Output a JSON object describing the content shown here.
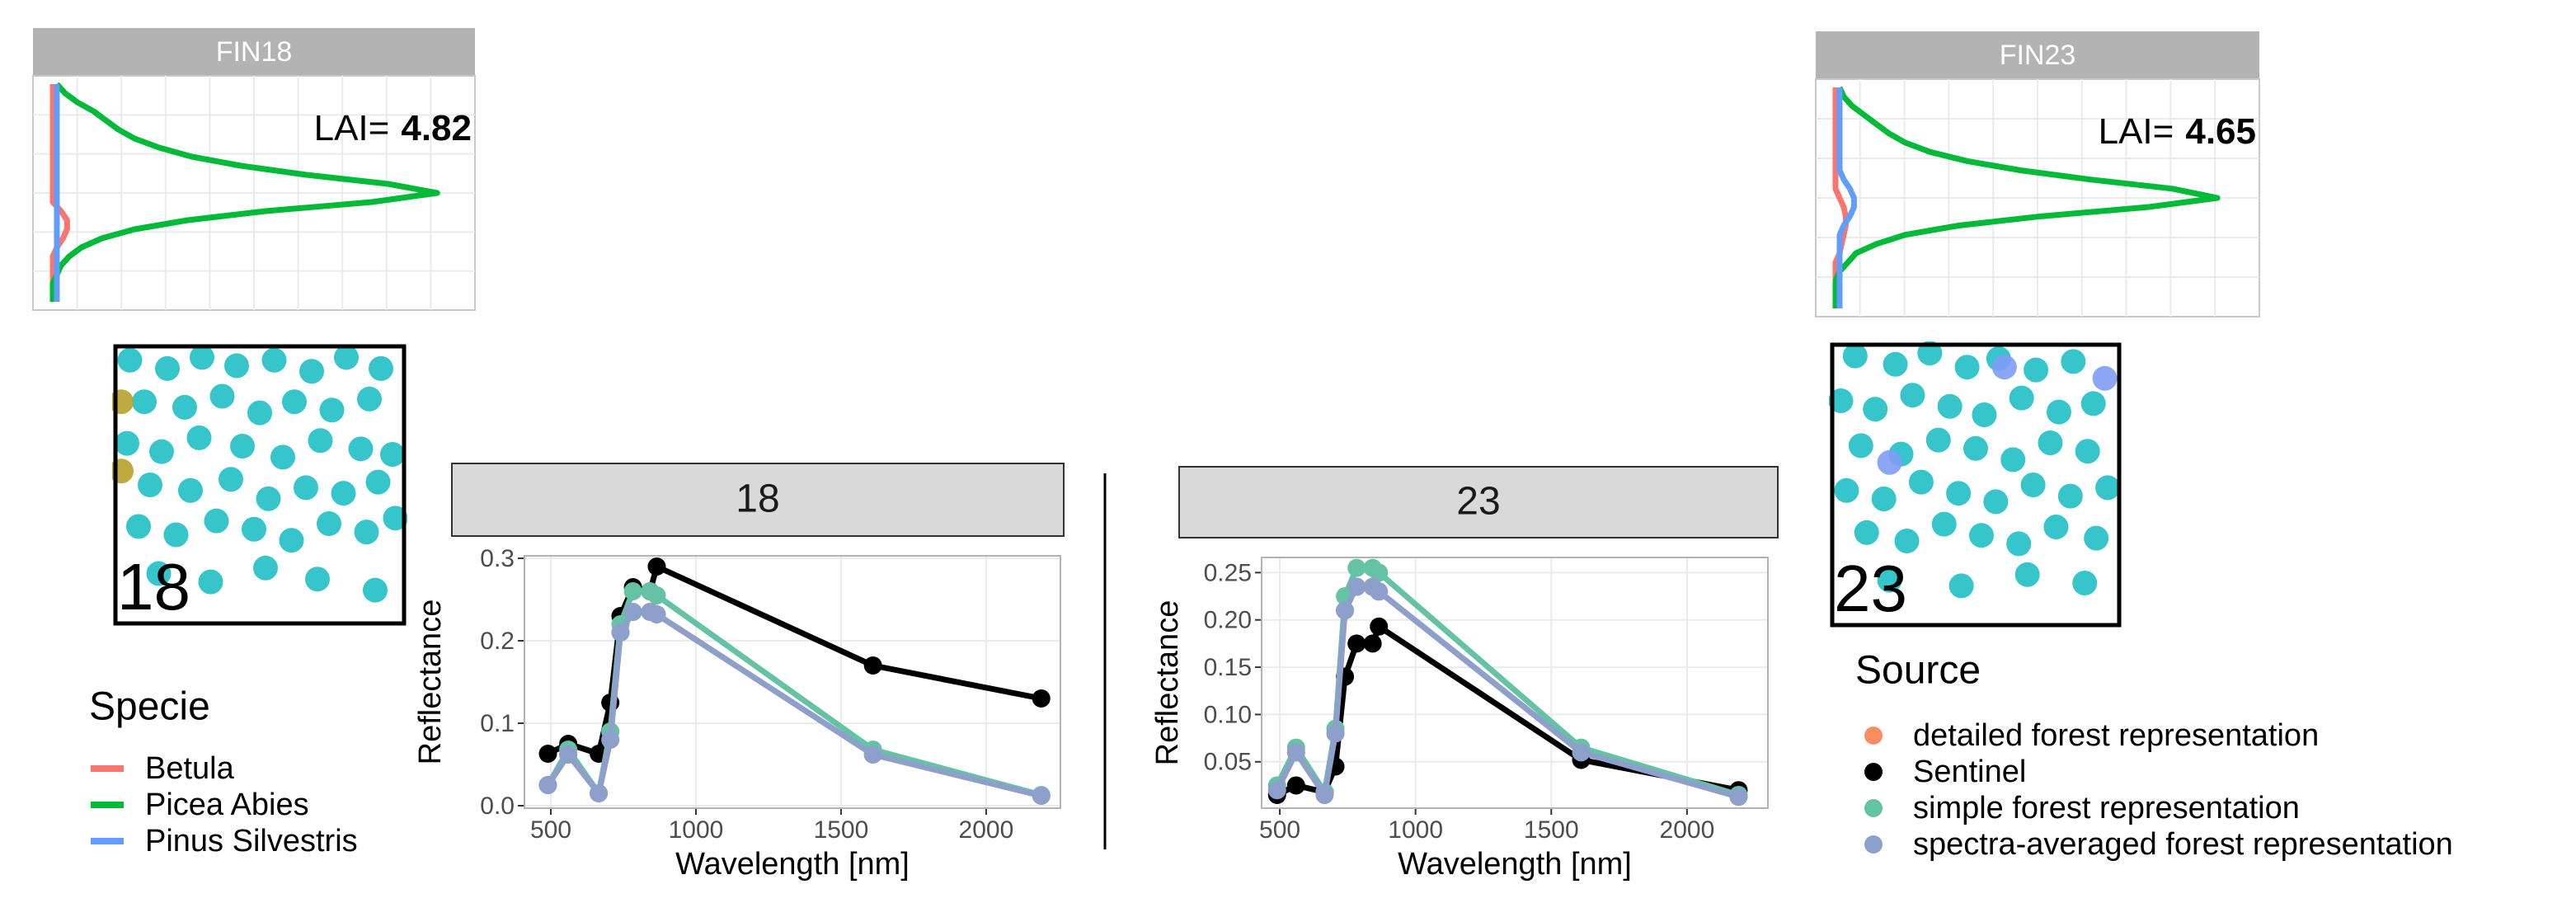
{
  "chart_data": [
    {
      "type": "density",
      "title": "FIN18",
      "annotation": {
        "label": "LAI=",
        "value": 4.82
      },
      "legend_title": "Specie",
      "xlim": [
        0,
        1
      ],
      "series": [
        {
          "name": "Betula",
          "color": "#f8766d",
          "values": [
            0,
            0,
            0,
            0,
            0,
            0,
            0,
            0,
            0,
            0,
            0,
            0,
            0,
            0,
            0.02,
            0.035,
            0.035,
            0.025,
            0.01,
            0,
            0,
            0,
            0,
            0,
            0
          ]
        },
        {
          "name": "Picea Abies",
          "color": "#00ba38",
          "values": [
            0.01,
            0.03,
            0.06,
            0.1,
            0.13,
            0.16,
            0.2,
            0.26,
            0.34,
            0.46,
            0.62,
            0.82,
            0.94,
            0.78,
            0.52,
            0.33,
            0.2,
            0.12,
            0.07,
            0.04,
            0.02,
            0.01,
            0,
            0,
            0
          ]
        },
        {
          "name": "Pinus Silvestris",
          "color": "#619cff",
          "values": [
            0.01,
            0.01,
            0.01,
            0.01,
            0.01,
            0.01,
            0.01,
            0.01,
            0.01,
            0.01,
            0.01,
            0.01,
            0.01,
            0.01,
            0.01,
            0.01,
            0.01,
            0.01,
            0.01,
            0.01,
            0.01,
            0.01,
            0.01,
            0.01,
            0.01
          ]
        }
      ]
    },
    {
      "type": "density",
      "title": "FIN23",
      "annotation": {
        "label": "LAI=",
        "value": 4.65
      },
      "xlim": [
        0,
        1
      ],
      "series": [
        {
          "color": "#f8766d",
          "values": [
            0,
            0,
            0,
            0,
            0,
            0,
            0,
            0,
            0,
            0,
            0,
            0,
            0.01,
            0.02,
            0.025,
            0.025,
            0.02,
            0.015,
            0.01,
            0,
            0,
            0,
            0,
            0,
            0
          ]
        },
        {
          "color": "#00ba38",
          "values": [
            0.01,
            0.02,
            0.04,
            0.07,
            0.1,
            0.13,
            0.17,
            0.23,
            0.32,
            0.45,
            0.62,
            0.82,
            0.93,
            0.76,
            0.5,
            0.3,
            0.17,
            0.1,
            0.05,
            0.03,
            0.01,
            0,
            0,
            0,
            0
          ]
        },
        {
          "color": "#619cff",
          "values": [
            0.01,
            0.01,
            0.01,
            0.01,
            0.01,
            0.01,
            0.01,
            0.01,
            0.01,
            0.01,
            0.02,
            0.035,
            0.045,
            0.045,
            0.035,
            0.02,
            0.01,
            0.01,
            0.01,
            0.01,
            0.01,
            0.01,
            0.01,
            0.01,
            0.01
          ]
        }
      ]
    },
    {
      "type": "tree_map",
      "label": "18",
      "xlim": [
        0,
        100
      ],
      "ylim": [
        0,
        100
      ],
      "series": [
        {
          "color": "#1fbfc4",
          "x": [
            5,
            18,
            30,
            42,
            55,
            68,
            80,
            92,
            10,
            24,
            37,
            50,
            62,
            75,
            88,
            4,
            16,
            29,
            44,
            58,
            71,
            85,
            96,
            12,
            26,
            40,
            53,
            66,
            79,
            91,
            8,
            21,
            35,
            48,
            61,
            74,
            87,
            97,
            15,
            33,
            52,
            70,
            90
          ],
          "y": [
            5,
            8,
            4,
            7,
            5,
            9,
            4,
            8,
            20,
            22,
            18,
            24,
            20,
            23,
            19,
            35,
            38,
            33,
            36,
            40,
            34,
            37,
            39,
            50,
            52,
            48,
            55,
            51,
            53,
            49,
            65,
            68,
            63,
            66,
            70,
            64,
            67,
            62,
            82,
            85,
            80,
            84,
            88
          ]
        },
        {
          "color": "#b8a12a",
          "x": [
            2,
            2
          ],
          "y": [
            20,
            45
          ]
        }
      ]
    },
    {
      "type": "tree_map",
      "label": "23",
      "xlim": [
        0,
        100
      ],
      "ylim": [
        0,
        100
      ],
      "series": [
        {
          "color": "#1fbfc4",
          "x": [
            8,
            22,
            34,
            47,
            58,
            71,
            84,
            3,
            15,
            28,
            41,
            53,
            66,
            79,
            91,
            10,
            24,
            37,
            50,
            63,
            76,
            89,
            5,
            18,
            31,
            44,
            57,
            70,
            83,
            96,
            12,
            26,
            39,
            52,
            65,
            78,
            92,
            20,
            45,
            68,
            88
          ],
          "y": [
            4,
            7,
            3,
            8,
            5,
            9,
            6,
            20,
            23,
            18,
            22,
            25,
            19,
            24,
            21,
            36,
            39,
            34,
            37,
            41,
            35,
            38,
            52,
            55,
            49,
            53,
            56,
            50,
            54,
            51,
            67,
            70,
            64,
            68,
            71,
            65,
            69,
            84,
            86,
            82,
            85
          ]
        },
        {
          "color": "#7f9cf5",
          "x": [
            20,
            95,
            60
          ],
          "y": [
            42,
            12,
            8
          ]
        }
      ]
    },
    {
      "type": "line",
      "title": "18",
      "x_label": "Wavelength [nm]",
      "y_label": "Reflectance",
      "legend_title": "Source",
      "x": [
        490,
        560,
        665,
        705,
        740,
        783,
        842,
        865,
        1610,
        2190
      ],
      "xlim": [
        409,
        2256
      ],
      "xticks": [
        500,
        1000,
        1500,
        2000
      ],
      "ylim": [
        -0.003,
        0.303
      ],
      "yticks": [
        {
          "value": 0,
          "label": "0.0"
        },
        0.1,
        0.2,
        0.3
      ],
      "series": [
        {
          "name": "detailed forest representation",
          "color": "#fc8d62",
          "values": [
            0.025,
            0.062,
            0.015,
            0.08,
            0.21,
            0.235,
            0.235,
            0.232,
            0.062,
            0.012
          ]
        },
        {
          "name": "Sentinel",
          "color": "#000000",
          "values": [
            0.063,
            0.075,
            0.063,
            0.125,
            0.23,
            0.265,
            0.26,
            0.29,
            0.17,
            0.13
          ]
        },
        {
          "name": "simple forest representation",
          "color": "#66c2a5",
          "values": [
            0.025,
            0.068,
            0.015,
            0.09,
            0.22,
            0.26,
            0.26,
            0.255,
            0.068,
            0.013
          ]
        },
        {
          "name": "spectra-averaged forest representation",
          "color": "#8da0cb",
          "values": [
            0.025,
            0.062,
            0.015,
            0.08,
            0.21,
            0.235,
            0.235,
            0.232,
            0.062,
            0.012
          ]
        }
      ]
    },
    {
      "type": "line",
      "title": "23",
      "x_label": "Wavelength [nm]",
      "y_label": "Reflectance",
      "x": [
        490,
        560,
        665,
        705,
        740,
        783,
        842,
        865,
        1610,
        2190
      ],
      "xlim": [
        433,
        2298
      ],
      "xticks": [
        500,
        1000,
        1500,
        2000
      ],
      "ylim": [
        0.001,
        0.266
      ],
      "yticks": [
        0.05,
        {
          "value": 0.1,
          "label": "0.10"
        },
        0.15,
        {
          "value": 0.2,
          "label": "0.20"
        },
        0.25
      ],
      "series": [
        {
          "color": "#fc8d62",
          "values": [
            0.02,
            0.06,
            0.015,
            0.08,
            0.21,
            0.235,
            0.235,
            0.23,
            0.06,
            0.013
          ]
        },
        {
          "color": "#000000",
          "values": [
            0.015,
            0.025,
            0.018,
            0.045,
            0.14,
            0.175,
            0.175,
            0.193,
            0.052,
            0.02
          ]
        },
        {
          "color": "#66c2a5",
          "values": [
            0.025,
            0.065,
            0.018,
            0.085,
            0.225,
            0.255,
            0.255,
            0.25,
            0.065,
            0.015
          ]
        },
        {
          "color": "#8da0cb",
          "values": [
            0.02,
            0.06,
            0.015,
            0.08,
            0.21,
            0.235,
            0.235,
            0.23,
            0.06,
            0.013
          ]
        }
      ]
    }
  ]
}
